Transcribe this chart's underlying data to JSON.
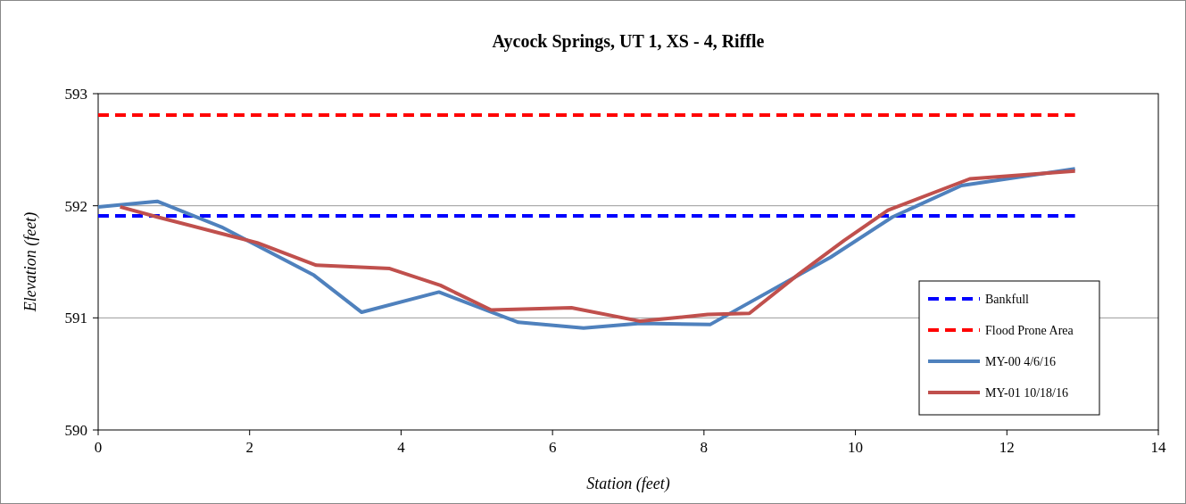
{
  "chart_data": {
    "type": "line",
    "title": "Aycock Springs, UT 1, XS - 4, Riffle",
    "xlabel": "Station (feet)",
    "ylabel": "Elevation (feet)",
    "xlim": [
      0,
      14
    ],
    "xticks": [
      0,
      2,
      4,
      6,
      8,
      10,
      12,
      14
    ],
    "ylim": [
      590,
      593
    ],
    "yticks": [
      590,
      591,
      592,
      593
    ],
    "grid": "y",
    "legend": "right",
    "series": [
      {
        "name": "Bankfull",
        "color": "#0000ff",
        "line_style": "dashed",
        "x": [
          0,
          12.9
        ],
        "values": [
          591.91,
          591.91
        ]
      },
      {
        "name": "Flood Prone Area",
        "color": "#ff0000",
        "line_style": "dashed",
        "x": [
          0,
          12.9
        ],
        "values": [
          592.81,
          592.81
        ]
      },
      {
        "name": "MY-00 4/6/16",
        "color": "#4f81bd",
        "line_style": "solid",
        "x": [
          0,
          0.78,
          1.63,
          2.85,
          3.48,
          4.5,
          5.55,
          6.41,
          7.16,
          8.08,
          9.67,
          10.49,
          11.4,
          12.9
        ],
        "values": [
          591.99,
          592.04,
          591.81,
          591.38,
          591.05,
          591.23,
          590.96,
          590.91,
          590.95,
          590.94,
          591.54,
          591.9,
          592.18,
          592.33
        ]
      },
      {
        "name": "MY-01 10/18/16",
        "color": "#c0504d",
        "line_style": "solid",
        "x": [
          0.29,
          0.78,
          2.1,
          2.88,
          3.85,
          4.52,
          5.19,
          6.25,
          7.16,
          8.05,
          8.6,
          9.25,
          9.85,
          10.43,
          11.51,
          12.9
        ],
        "values": [
          591.99,
          591.9,
          591.67,
          591.47,
          591.44,
          591.29,
          591.07,
          591.09,
          590.97,
          591.03,
          591.04,
          591.39,
          591.69,
          591.96,
          592.24,
          592.31
        ]
      }
    ]
  }
}
